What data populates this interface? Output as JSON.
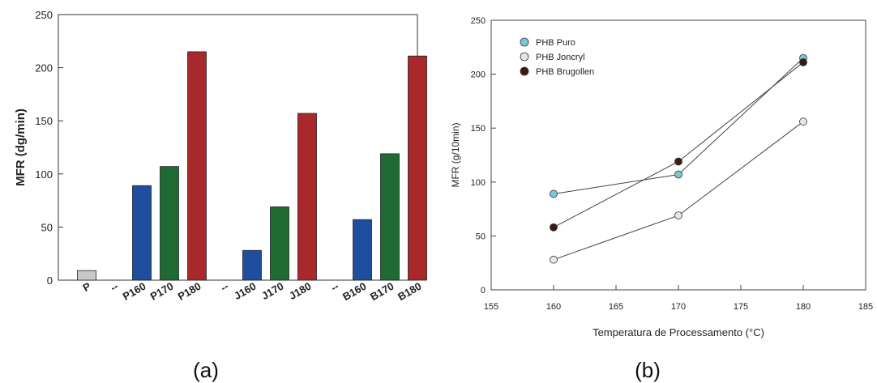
{
  "chart_data": [
    {
      "panel": "(a)",
      "type": "bar",
      "ylabel": "MFR (dg/min)",
      "ylim": [
        0,
        250
      ],
      "yticks": [
        0,
        50,
        100,
        150,
        200,
        250
      ],
      "grid": false,
      "legend": "none",
      "categories": [
        "P",
        "--",
        "P160",
        "P170",
        "P180",
        "--",
        "J160",
        "J170",
        "J180",
        "--",
        "B160",
        "B170",
        "B180"
      ],
      "values": [
        9,
        null,
        89,
        107,
        215,
        null,
        28,
        69,
        157,
        null,
        57,
        119,
        211
      ],
      "colors": [
        "#c9c9c9",
        null,
        "#1f4e9e",
        "#1d6b32",
        "#a8282c",
        null,
        "#1f4e9e",
        "#1d6b32",
        "#a8282c",
        null,
        "#1f4e9e",
        "#1d6b32",
        "#a8282c"
      ]
    },
    {
      "panel": "(b)",
      "type": "line",
      "xlabel": "Temperatura de Processamento (°C)",
      "ylabel": "MFR (g/10min)",
      "xlim": [
        155,
        185
      ],
      "ylim": [
        0,
        250
      ],
      "xticks": [
        155,
        160,
        165,
        170,
        175,
        180,
        185
      ],
      "yticks": [
        0,
        50,
        100,
        150,
        200,
        250
      ],
      "grid": false,
      "legend": "top-left",
      "x": [
        160,
        170,
        180
      ],
      "series": [
        {
          "name": "PHB Puro",
          "values": [
            89,
            107,
            215
          ],
          "color": "#79c8d6"
        },
        {
          "name": "PHB Joncryl",
          "values": [
            28,
            69,
            156
          ],
          "color": "#e6e6e6"
        },
        {
          "name": "PHB Brugollen",
          "values": [
            58,
            119,
            211
          ],
          "color": "#3a1a12"
        }
      ]
    }
  ]
}
